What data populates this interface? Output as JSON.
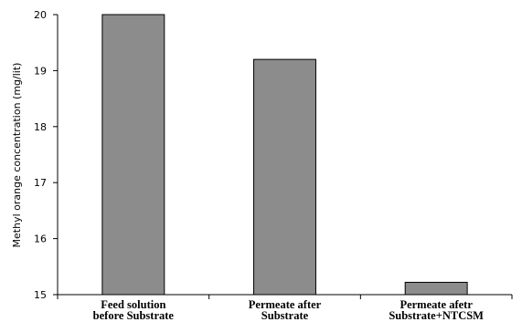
{
  "chart_data": {
    "type": "bar",
    "categories": [
      [
        "Feed solution",
        "before Substrate"
      ],
      [
        "Permeate after",
        "Substrate"
      ],
      [
        "Permeate afetr",
        "Substrate+NTCSM"
      ]
    ],
    "values": [
      20,
      19.2,
      15.22
    ],
    "title": "",
    "xlabel": "",
    "ylabel": "Methyl orange concentration (mg/lit)",
    "ylim": [
      15,
      20
    ],
    "yticks": [
      "15",
      "16",
      "17",
      "18",
      "19",
      "20"
    ],
    "grid": false,
    "legend": "none",
    "colors": {
      "bar_fill": "#8c8c8c",
      "bar_stroke": "#000000",
      "axis": "#000000"
    }
  }
}
